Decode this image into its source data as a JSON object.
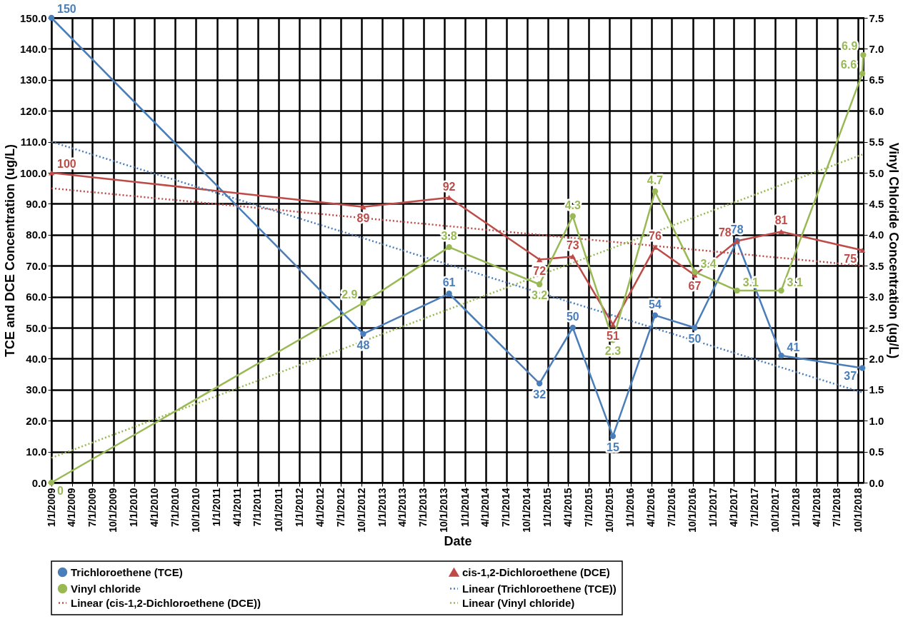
{
  "chart_data": {
    "type": "line",
    "xlabel": "Date",
    "ylabel": "TCE and DCE Concentration (ug/L)",
    "y2label": "Vinyl Chloride Concentration (ug/L)",
    "xlim": [
      "2009-01-01",
      "2018-10-26"
    ],
    "xticks": [
      {
        "value": "2009-01-01",
        "label": "1/1/2009"
      },
      {
        "value": "2009-04-01",
        "label": "4/1/2009"
      },
      {
        "value": "2009-07-01",
        "label": "7/1/2009"
      },
      {
        "value": "2009-10-01",
        "label": "10/1/2009"
      },
      {
        "value": "2010-01-01",
        "label": "1/1/2010"
      },
      {
        "value": "2010-04-01",
        "label": "4/1/2010"
      },
      {
        "value": "2010-07-01",
        "label": "7/1/2010"
      },
      {
        "value": "2010-10-01",
        "label": "10/1/2010"
      },
      {
        "value": "2011-01-01",
        "label": "1/1/2011"
      },
      {
        "value": "2011-04-01",
        "label": "4/1/2011"
      },
      {
        "value": "2011-07-01",
        "label": "7/1/2011"
      },
      {
        "value": "2011-10-01",
        "label": "10/1/2011"
      },
      {
        "value": "2012-01-01",
        "label": "1/1/2012"
      },
      {
        "value": "2012-04-01",
        "label": "4/1/2012"
      },
      {
        "value": "2012-07-01",
        "label": "7/1/2012"
      },
      {
        "value": "2012-10-01",
        "label": "10/1/2012"
      },
      {
        "value": "2013-01-01",
        "label": "1/1/2013"
      },
      {
        "value": "2013-04-01",
        "label": "4/1/2013"
      },
      {
        "value": "2013-07-01",
        "label": "7/1/2013"
      },
      {
        "value": "2013-10-01",
        "label": "10/1/2013"
      },
      {
        "value": "2014-01-01",
        "label": "1/1/2014"
      },
      {
        "value": "2014-04-01",
        "label": "4/1/2014"
      },
      {
        "value": "2014-07-01",
        "label": "7/1/2014"
      },
      {
        "value": "2014-10-01",
        "label": "10/1/2014"
      },
      {
        "value": "2015-01-01",
        "label": "1/1/2015"
      },
      {
        "value": "2015-04-01",
        "label": "4/1/2015"
      },
      {
        "value": "2015-07-01",
        "label": "7/1/2015"
      },
      {
        "value": "2015-10-01",
        "label": "10/1/2015"
      },
      {
        "value": "2016-01-01",
        "label": "1/1/2016"
      },
      {
        "value": "2016-04-01",
        "label": "4/1/2016"
      },
      {
        "value": "2016-07-01",
        "label": "7/1/2016"
      },
      {
        "value": "2016-10-01",
        "label": "10/1/2016"
      },
      {
        "value": "2017-01-01",
        "label": "1/1/2017"
      },
      {
        "value": "2017-04-01",
        "label": "4/1/2017"
      },
      {
        "value": "2017-07-01",
        "label": "7/1/2017"
      },
      {
        "value": "2017-10-01",
        "label": "10/1/2017"
      },
      {
        "value": "2018-01-01",
        "label": "1/1/2018"
      },
      {
        "value": "2018-04-01",
        "label": "4/1/2018"
      },
      {
        "value": "2018-07-01",
        "label": "7/1/2018"
      },
      {
        "value": "2018-10-01",
        "label": "10/1/2018"
      }
    ],
    "ylim": [
      0,
      150
    ],
    "yticks": [
      {
        "value": 0,
        "label": "0.0"
      },
      {
        "value": 10,
        "label": "10.0"
      },
      {
        "value": 20,
        "label": "20.0"
      },
      {
        "value": 30,
        "label": "30.0"
      },
      {
        "value": 40,
        "label": "40.0"
      },
      {
        "value": 50,
        "label": "50.0"
      },
      {
        "value": 60,
        "label": "60.0"
      },
      {
        "value": 70,
        "label": "70.0"
      },
      {
        "value": 80,
        "label": "80.0"
      },
      {
        "value": 90,
        "label": "90.0"
      },
      {
        "value": 100,
        "label": "100.0"
      },
      {
        "value": 110,
        "label": "110.0"
      },
      {
        "value": 120,
        "label": "120.0"
      },
      {
        "value": 130,
        "label": "130.0"
      },
      {
        "value": 140,
        "label": "140.0"
      },
      {
        "value": 150,
        "label": "150.0"
      }
    ],
    "y2lim": [
      0,
      7.5
    ],
    "y2ticks": [
      {
        "value": 0,
        "label": "0.0"
      },
      {
        "value": 0.5,
        "label": "0.5"
      },
      {
        "value": 1,
        "label": "1.0"
      },
      {
        "value": 1.5,
        "label": "1.5"
      },
      {
        "value": 2,
        "label": "2.0"
      },
      {
        "value": 2.5,
        "label": "2.5"
      },
      {
        "value": 3,
        "label": "3.0"
      },
      {
        "value": 3.5,
        "label": "3.5"
      },
      {
        "value": 4,
        "label": "4.0"
      },
      {
        "value": 4.5,
        "label": "4.5"
      },
      {
        "value": 5,
        "label": "5.0"
      },
      {
        "value": 5.5,
        "label": "5.5"
      },
      {
        "value": 6,
        "label": "6.0"
      },
      {
        "value": 6.5,
        "label": "6.5"
      },
      {
        "value": 7,
        "label": "7.0"
      },
      {
        "value": 7.5,
        "label": "7.5"
      }
    ],
    "grid": true,
    "legend": "bottom",
    "data_labels": true,
    "series": [
      {
        "name": "Trichloroethene (TCE)",
        "color": "#4a7ebb",
        "marker": "circle",
        "line_style": "solid",
        "x": [
          "2009-01-01",
          "2012-10-08",
          "2013-10-22",
          "2014-11-25",
          "2015-04-21",
          "2015-10-15",
          "2016-04-18",
          "2016-10-10",
          "2017-04-15",
          "2017-10-27",
          "2018-10-20"
        ],
        "values": [
          150,
          48,
          61,
          32,
          50,
          15,
          54,
          50,
          78,
          41,
          37
        ]
      },
      {
        "name": "cis-1,2-Dichloroethene (DCE)",
        "color": "#be4b48",
        "marker": "triangle",
        "line_style": "solid",
        "x": [
          "2009-01-01",
          "2012-10-08",
          "2013-10-22",
          "2014-11-25",
          "2015-04-21",
          "2015-10-15",
          "2016-04-18",
          "2016-10-10",
          "2017-04-15",
          "2017-10-27",
          "2018-10-20"
        ],
        "values": [
          100,
          89,
          92,
          72,
          73,
          51,
          76,
          67,
          78,
          81,
          75
        ]
      },
      {
        "name": "Vinyl chloride",
        "color": "#98b954",
        "marker": "circle",
        "line_style": "solid",
        "axis": "y2",
        "x": [
          "2009-01-01",
          "2012-10-08",
          "2013-10-22",
          "2014-11-25",
          "2015-04-21",
          "2015-10-15",
          "2016-04-18",
          "2016-10-10",
          "2017-04-15",
          "2017-10-27",
          "2018-10-20",
          "2018-10-24"
        ],
        "values": [
          0,
          2.9,
          3.8,
          3.2,
          4.3,
          2.3,
          4.7,
          3.4,
          3.1,
          3.1,
          6.6,
          6.9
        ]
      },
      {
        "name": "Linear (Trichloroethene (TCE))",
        "color": "#4a7ebb",
        "marker": "none",
        "line_style": "dotted",
        "data_labels": false,
        "x": [
          "2009-01-01",
          "2018-10-24"
        ],
        "values": [
          110,
          29
        ]
      },
      {
        "name": "Linear (cis-1,2-Dichloroethene (DCE))",
        "color": "#be4b48",
        "marker": "none",
        "line_style": "dotted",
        "data_labels": false,
        "x": [
          "2009-01-01",
          "2018-10-24"
        ],
        "values": [
          95,
          70
        ]
      },
      {
        "name": "Linear (Vinyl chloride)",
        "color": "#98b954",
        "marker": "none",
        "line_style": "dotted",
        "data_labels": false,
        "axis": "y2",
        "x": [
          "2009-01-01",
          "2018-10-24"
        ],
        "values": [
          0.4,
          5.3
        ]
      }
    ]
  }
}
